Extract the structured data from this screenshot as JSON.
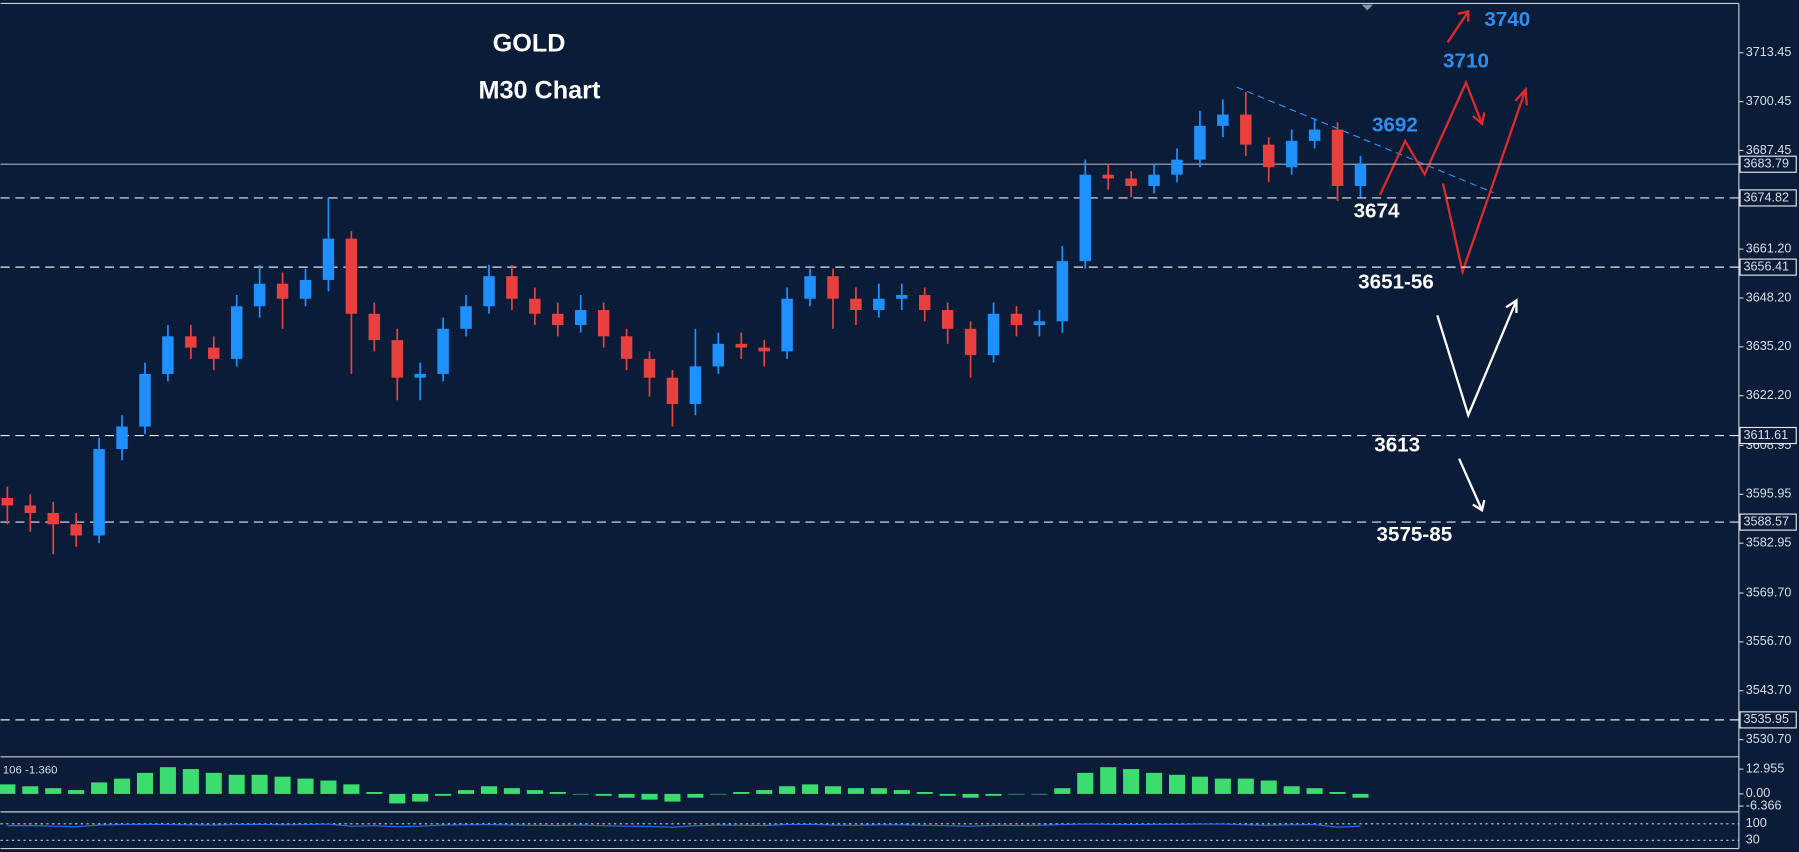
{
  "chart_data": {
    "type": "candlestick",
    "title": "GOLD",
    "subtitle": "M30 Chart",
    "up_color": "#1e90ff",
    "down_color": "#e8403f",
    "open": [
      3595,
      3593,
      3591,
      3588,
      3585,
      3608,
      3614,
      3628,
      3638,
      3635,
      3632,
      3646,
      3652,
      3648,
      3653,
      3664,
      3644,
      3637,
      3627,
      3628,
      3640,
      3646,
      3654,
      3648,
      3644,
      3641,
      3645,
      3638,
      3632,
      3627,
      3620,
      3630,
      3636,
      3635,
      3634,
      3648,
      3654,
      3648,
      3645,
      3648,
      3649,
      3645,
      3640,
      3633,
      3644,
      3641,
      3642,
      3658,
      3681,
      3680,
      3678,
      3681,
      3685,
      3694,
      3697,
      3689,
      3683,
      3690,
      3693,
      3678
    ],
    "high": [
      3598,
      3596,
      3594,
      3591,
      3611,
      3617,
      3631,
      3641,
      3641,
      3638,
      3649,
      3657,
      3655,
      3656,
      3675,
      3666,
      3647,
      3640,
      3631,
      3643,
      3649,
      3657,
      3657,
      3651,
      3647,
      3649,
      3647,
      3640,
      3634,
      3629,
      3640,
      3639,
      3639,
      3637,
      3651,
      3656,
      3656,
      3651,
      3652,
      3652,
      3651,
      3647,
      3642,
      3647,
      3646,
      3645,
      3662,
      3685,
      3684,
      3682,
      3684,
      3688,
      3698,
      3701,
      3703,
      3691,
      3693,
      3696,
      3695,
      3686
    ],
    "low": [
      3588,
      3586,
      3580,
      3582,
      3583,
      3605,
      3612,
      3626,
      3632,
      3629,
      3630,
      3643,
      3640,
      3646,
      3650,
      3628,
      3634,
      3621,
      3621,
      3626,
      3638,
      3644,
      3645,
      3641,
      3638,
      3639,
      3635,
      3629,
      3622,
      3614,
      3617,
      3628,
      3632,
      3630,
      3632,
      3646,
      3640,
      3641,
      3643,
      3645,
      3642,
      3636,
      3627,
      3631,
      3638,
      3638,
      3639,
      3656,
      3677,
      3675,
      3676,
      3679,
      3683,
      3691,
      3686,
      3679,
      3681,
      3688,
      3674,
      3675
    ],
    "close": [
      3593,
      3591,
      3588,
      3585,
      3608,
      3614,
      3628,
      3638,
      3635,
      3632,
      3646,
      3652,
      3648,
      3653,
      3664,
      3644,
      3637,
      3627,
      3628,
      3640,
      3646,
      3654,
      3648,
      3644,
      3641,
      3645,
      3638,
      3632,
      3627,
      3620,
      3630,
      3636,
      3635,
      3634,
      3648,
      3654,
      3648,
      3645,
      3648,
      3649,
      3645,
      3640,
      3633,
      3644,
      3641,
      3642,
      3658,
      3681,
      3680,
      3678,
      3681,
      3685,
      3694,
      3697,
      3689,
      3683,
      3690,
      3693,
      3678,
      3683.79
    ],
    "ylim": [
      3526.12,
      3726.57
    ],
    "yticks": [
      3713.45,
      3700.45,
      3687.45,
      {
        "value": 3661.2,
        "label": "3661.20"
      },
      {
        "value": 3648.2,
        "label": "3648.20"
      },
      {
        "value": 3635.2,
        "label": "3635.20"
      },
      {
        "value": 3622.2,
        "label": "3622.20"
      },
      3608.95,
      3595.95,
      3582.95,
      {
        "value": 3569.7,
        "label": "3569.70"
      },
      {
        "value": 3556.7,
        "label": "3556.70"
      },
      {
        "value": 3543.7,
        "label": "3543.70"
      },
      {
        "value": 3530.7,
        "label": "3530.70"
      }
    ],
    "current_price": 3683.79,
    "levels": [
      3674.82,
      3656.41,
      3611.61,
      3588.57,
      3535.95
    ],
    "annotations": [
      {
        "text": "3740",
        "color": "#2d8ff0"
      },
      {
        "text": "3710",
        "color": "#2d8ff0"
      },
      {
        "text": "3692",
        "color": "#2d8ff0"
      },
      {
        "text": "3674",
        "color": "#ffffff"
      },
      {
        "text": "3651-56",
        "color": "#ffffff"
      },
      {
        "text": "3613",
        "color": "#ffffff"
      },
      {
        "text": "3575-85",
        "color": "#ffffff"
      }
    ],
    "macd": {
      "label": "106 -1.360",
      "color": "#3ddc6e",
      "values": [
        5,
        4,
        3,
        2,
        6,
        8,
        11,
        14,
        13,
        11,
        10,
        10,
        9,
        8,
        7,
        5,
        1,
        -5,
        -4,
        -1,
        2,
        4,
        3,
        2,
        1,
        0,
        -1,
        -2,
        -3,
        -4,
        -2,
        0,
        1,
        2,
        4,
        5,
        4,
        3,
        3,
        2,
        1,
        -1,
        -2,
        -1,
        0,
        0,
        3,
        11,
        14,
        13,
        11,
        10,
        9,
        8,
        8,
        7,
        4,
        3,
        1,
        -2
      ],
      "ylim": [
        -8.8,
        18.8
      ],
      "yticks": [
        12.955,
        {
          "value": 0,
          "label": "0.00"
        },
        -6.366
      ]
    },
    "rsi": {
      "color": "#2d6fe0",
      "values": [
        92,
        93,
        90,
        88,
        95,
        97,
        98,
        97,
        96,
        95,
        97,
        98,
        96,
        97,
        99,
        90,
        92,
        88,
        90,
        95,
        96,
        97,
        95,
        94,
        93,
        95,
        92,
        90,
        89,
        86,
        92,
        95,
        94,
        93,
        97,
        98,
        95,
        94,
        96,
        96,
        94,
        92,
        90,
        94,
        93,
        94,
        97,
        99,
        98,
        97,
        98,
        98,
        99,
        99,
        96,
        94,
        96,
        97,
        86,
        90
      ],
      "ylim": [
        0,
        146
      ],
      "yticks": [
        100,
        30
      ]
    }
  }
}
